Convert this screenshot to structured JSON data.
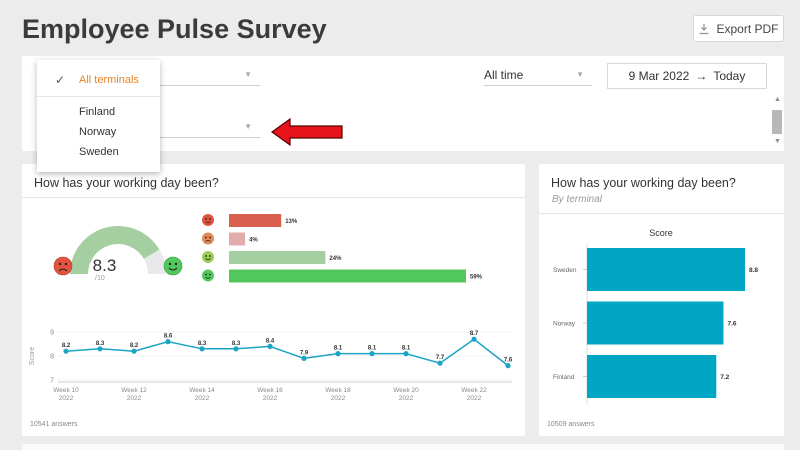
{
  "header": {
    "title": "Employee Pulse Survey",
    "export_label": "Export PDF"
  },
  "filters": {
    "time_select": "All time",
    "date_from": "9 Mar 2022",
    "date_to": "Today"
  },
  "dropdown": {
    "selected": "All terminals",
    "options": [
      "Finland",
      "Norway",
      "Sweden"
    ]
  },
  "left_card": {
    "title": "How has your working day been?",
    "gauge_value": "8.3",
    "gauge_max": "/10",
    "gauge_fraction": 0.83,
    "distribution": [
      {
        "mood": "very-sad",
        "pct": 13,
        "label": "13%",
        "color": "#d9604f"
      },
      {
        "mood": "sad",
        "pct": 4,
        "label": "4%",
        "color": "#e1acab"
      },
      {
        "mood": "happy",
        "pct": 24,
        "label": "24%",
        "color": "#a5cfa1"
      },
      {
        "mood": "very-happy",
        "pct": 59,
        "label": "59%",
        "color": "#52c85c"
      }
    ],
    "answers": "10541 answers"
  },
  "right_card": {
    "title": "How has your working day been?",
    "subtitle": "By terminal",
    "answers": "10509 answers"
  },
  "chart_data": [
    {
      "type": "line",
      "ylabel": "Score",
      "ylim": [
        7,
        9
      ],
      "yticks": [
        "9",
        "8",
        "7"
      ],
      "x_tick_labels": [
        [
          "Week 10",
          "2022"
        ],
        [
          "Week 12",
          "2022"
        ],
        [
          "Week 14",
          "2022"
        ],
        [
          "Week 16",
          "2022"
        ],
        [
          "Week 18",
          "2022"
        ],
        [
          "Week 20",
          "2022"
        ],
        [
          "Week 22",
          "2022"
        ]
      ],
      "x": [
        10,
        11,
        12,
        13,
        14,
        15,
        16,
        17,
        18,
        19,
        20,
        21,
        22,
        23
      ],
      "values": [
        8.2,
        8.3,
        8.2,
        8.6,
        8.3,
        8.3,
        8.4,
        7.9,
        8.1,
        8.1,
        8.1,
        7.7,
        8.7,
        7.6
      ],
      "labels": [
        "8.2",
        "8.3",
        "8.2",
        "8.6",
        "8.3",
        "8.3",
        "8.4",
        "7.9",
        "8.1",
        "8.1",
        "8.1",
        "7.7",
        "8.7",
        "7.6"
      ],
      "color": "#1aa5c4"
    },
    {
      "type": "bar",
      "orientation": "horizontal",
      "title": "Score",
      "categories": [
        "Sweden",
        "Norway",
        "Finland"
      ],
      "values": [
        8.8,
        7.6,
        7.2
      ],
      "labels": [
        "8.8",
        "7.6",
        "7.2"
      ],
      "color": "#00a6c4"
    }
  ]
}
